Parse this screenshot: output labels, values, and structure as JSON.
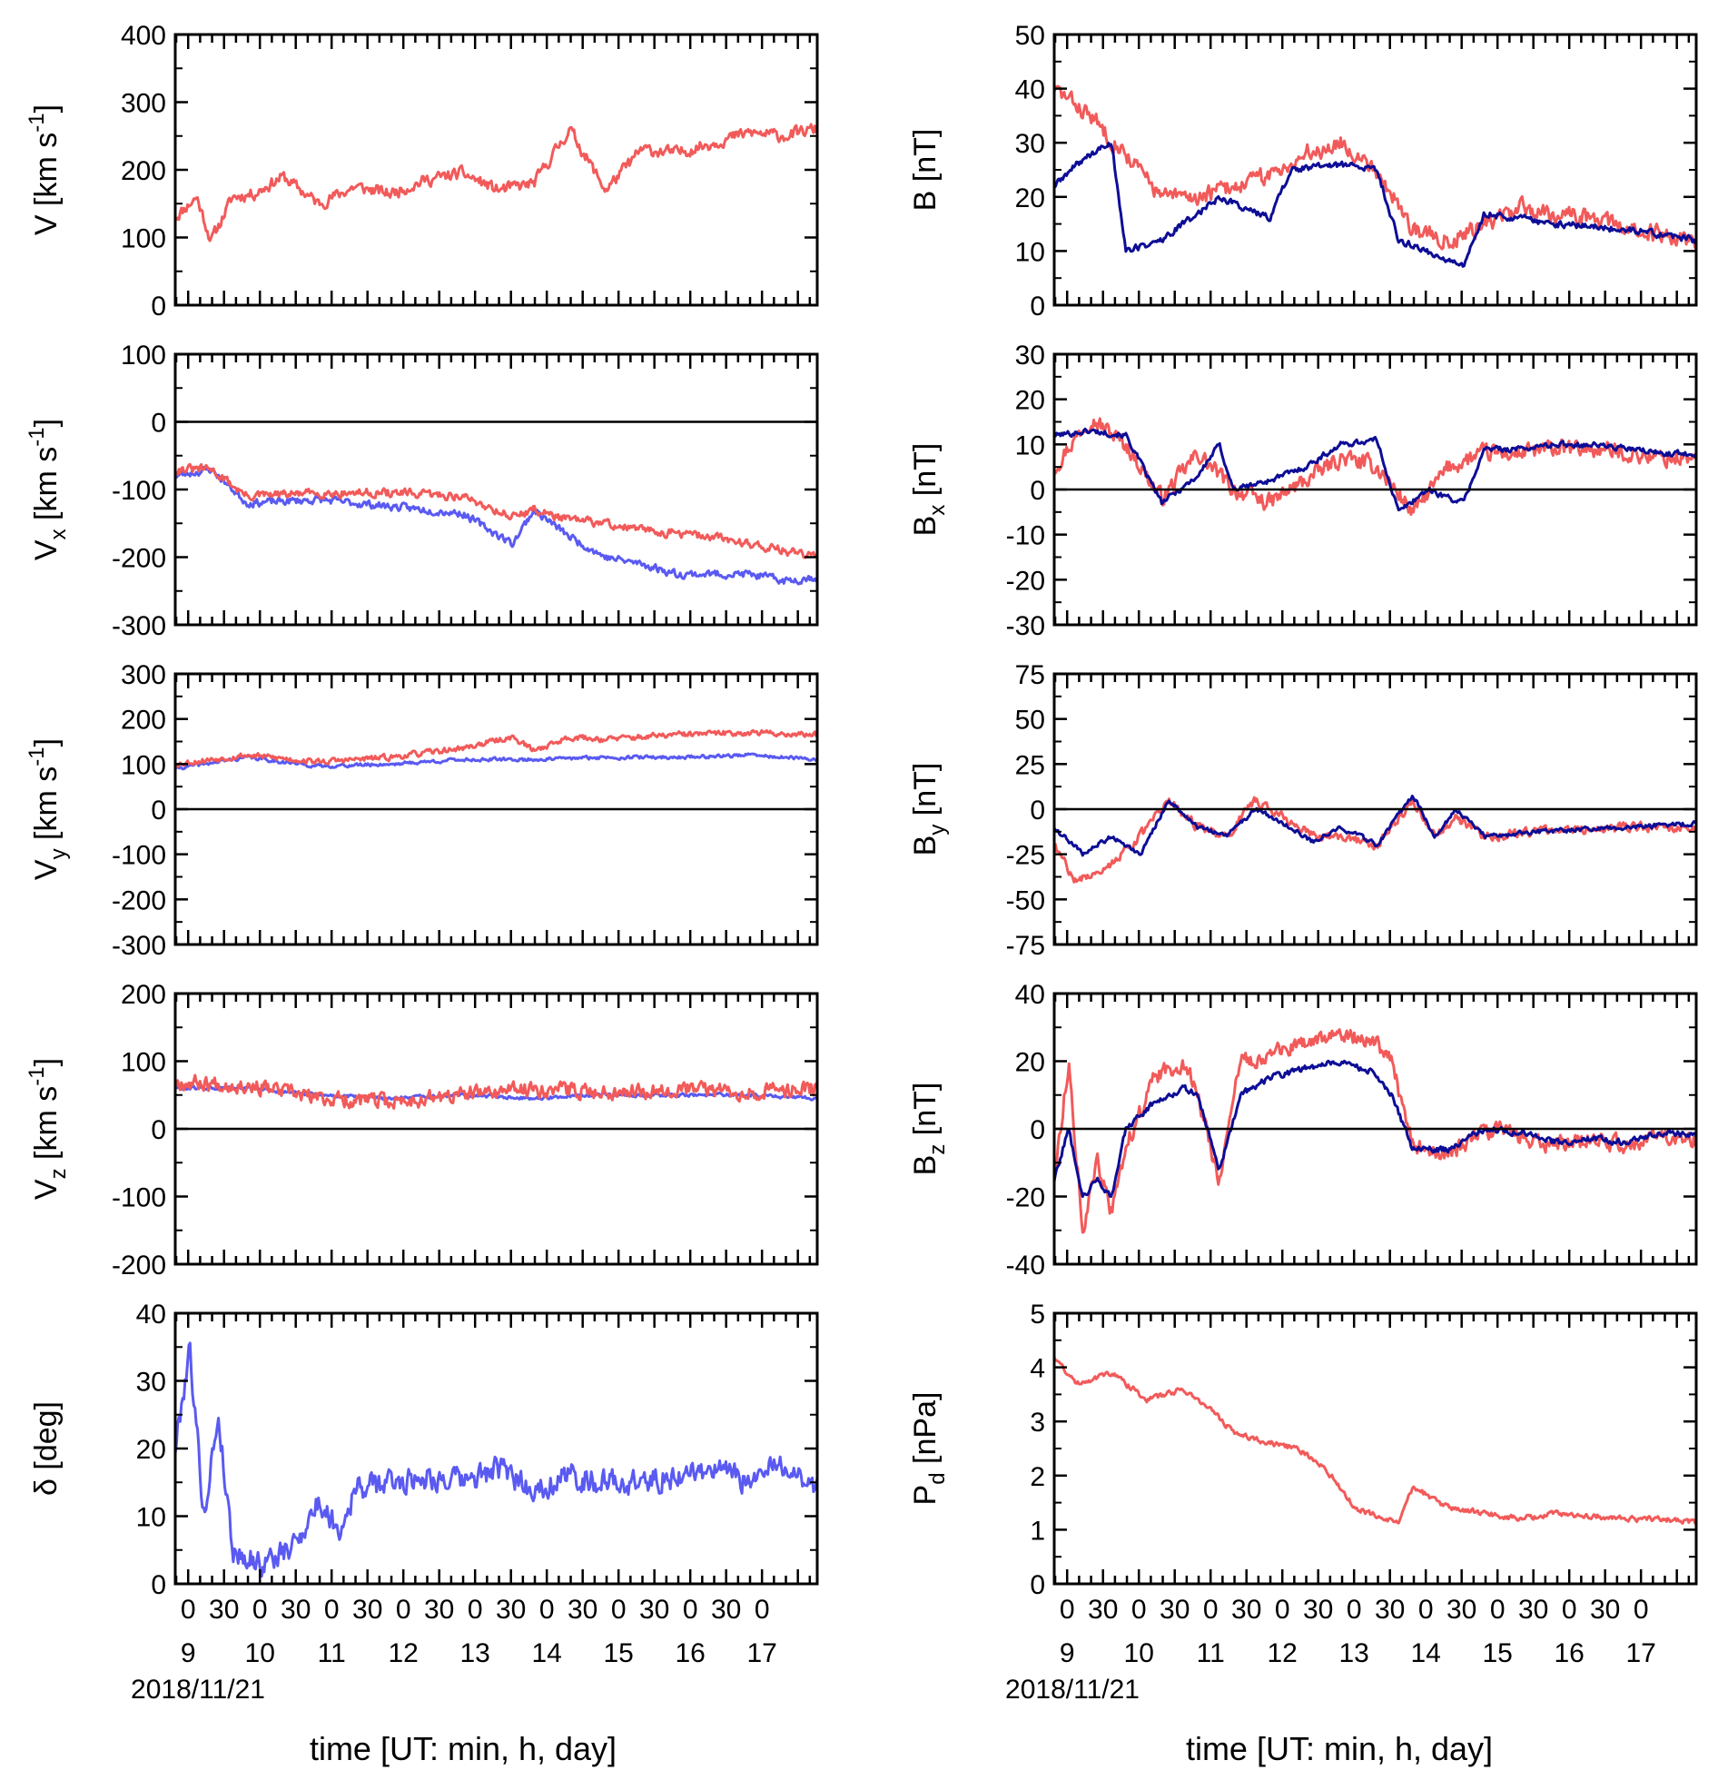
{
  "figure": {
    "x_axis_title": "time [UT: min, h, day]",
    "date": "2018/11/21",
    "colors": {
      "pred": "#f25a5a",
      "obs_light": "#5a5af2",
      "obs_dark": "#0d0d96",
      "axis": "#000000"
    }
  },
  "chart_data": [
    {
      "id": "V",
      "column": "left",
      "type": "line",
      "ylabel": "V [km s-1]",
      "ylabel_main": "V [km s",
      "ylabel_sup": "-1",
      "ylabel_tail": "]",
      "ylim": [
        0,
        400
      ],
      "yticks": [
        0,
        100,
        200,
        300,
        400
      ],
      "zero_line": false,
      "series": [
        {
          "name": "red",
          "color": "#f25a5a",
          "x": [
            0,
            0.3,
            0.5,
            0.8,
            1.1,
            1.5,
            2,
            2.5,
            3,
            3.5,
            4,
            4.5,
            5,
            5.5,
            6,
            6.5,
            7,
            7.5,
            8,
            8.5,
            8.9
          ],
          "y": [
            130,
            160,
            95,
            160,
            165,
            190,
            150,
            175,
            165,
            185,
            195,
            170,
            180,
            260,
            170,
            230,
            225,
            240,
            255,
            250,
            260
          ],
          "noise": 14,
          "seed": 11
        }
      ]
    },
    {
      "id": "Vx",
      "column": "left",
      "type": "line",
      "ylabel": "Vx [km s-1]",
      "ylabel_main": "V",
      "ylabel_sub": "x",
      "ylabel_mid": " [km s",
      "ylabel_sup": "-1",
      "ylabel_tail": "]",
      "ylim": [
        -300,
        100
      ],
      "yticks": [
        -300,
        -200,
        -100,
        0,
        100
      ],
      "zero_line": true,
      "series": [
        {
          "name": "blue",
          "color": "#5a5af2",
          "x": [
            0,
            0.5,
            1,
            2,
            3,
            4,
            4.7,
            5,
            5.5,
            6,
            6.5,
            7,
            7.5,
            8,
            8.5,
            8.9
          ],
          "y": [
            -80,
            -70,
            -120,
            -115,
            -125,
            -135,
            -180,
            -130,
            -170,
            -200,
            -210,
            -225,
            -225,
            -225,
            -235,
            -230
          ],
          "noise": 9,
          "seed": 23
        },
        {
          "name": "red",
          "color": "#f25a5a",
          "x": [
            0,
            0.5,
            1,
            2,
            3,
            4,
            4.7,
            5,
            5.5,
            6,
            6.5,
            7,
            7.5,
            8,
            8.5,
            8.9
          ],
          "y": [
            -70,
            -70,
            -110,
            -105,
            -105,
            -110,
            -140,
            -130,
            -145,
            -150,
            -160,
            -165,
            -170,
            -180,
            -190,
            -200
          ],
          "noise": 10,
          "seed": 31
        }
      ]
    },
    {
      "id": "Vy",
      "column": "left",
      "type": "line",
      "ylabel": "Vy [km s-1]",
      "ylabel_main": "V",
      "ylabel_sub": "y",
      "ylabel_mid": " [km s",
      "ylabel_sup": "-1",
      "ylabel_tail": "]",
      "ylim": [
        -300,
        300
      ],
      "yticks": [
        -300,
        -200,
        -100,
        0,
        100,
        200,
        300
      ],
      "zero_line": true,
      "series": [
        {
          "name": "blue",
          "color": "#5a5af2",
          "x": [
            0,
            1,
            2,
            3,
            4,
            5,
            6,
            7,
            8,
            8.9
          ],
          "y": [
            90,
            115,
            95,
            100,
            110,
            110,
            115,
            115,
            120,
            110
          ],
          "noise": 6,
          "seed": 41
        },
        {
          "name": "red",
          "color": "#f25a5a",
          "x": [
            0,
            1,
            2,
            3,
            4,
            4.7,
            5,
            5.5,
            6,
            7,
            8,
            8.9
          ],
          "y": [
            100,
            120,
            105,
            115,
            135,
            160,
            130,
            160,
            155,
            165,
            170,
            165
          ],
          "noise": 10,
          "seed": 53
        }
      ]
    },
    {
      "id": "Vz",
      "column": "left",
      "type": "line",
      "ylabel": "Vz [km s-1]",
      "ylabel_main": "V",
      "ylabel_sub": "z",
      "ylabel_mid": " [km s",
      "ylabel_sup": "-1",
      "ylabel_tail": "]",
      "ylim": [
        -200,
        200
      ],
      "yticks": [
        -200,
        -100,
        0,
        100,
        200
      ],
      "zero_line": true,
      "series": [
        {
          "name": "blue",
          "color": "#5a5af2",
          "x": [
            0,
            1,
            2,
            3,
            4,
            5,
            6,
            7,
            8,
            8.9
          ],
          "y": [
            60,
            60,
            50,
            45,
            50,
            45,
            50,
            50,
            50,
            45
          ],
          "noise": 4,
          "seed": 61
        },
        {
          "name": "red",
          "color": "#f25a5a",
          "x": [
            0,
            1,
            2,
            3,
            4,
            5,
            6,
            7,
            8,
            8.9
          ],
          "y": [
            70,
            65,
            45,
            40,
            50,
            60,
            55,
            60,
            55,
            60
          ],
          "noise": 18,
          "seed": 67
        }
      ]
    },
    {
      "id": "delta",
      "column": "left",
      "type": "line",
      "ylabel": "δ [deg]",
      "ylabel_main": "δ [deg]",
      "ylim": [
        0,
        40
      ],
      "yticks": [
        0,
        10,
        20,
        30,
        40
      ],
      "zero_line": false,
      "series": [
        {
          "name": "blue",
          "color": "#5a5af2",
          "x": [
            0,
            0.2,
            0.4,
            0.6,
            0.8,
            1.2,
            1.6,
            2,
            2.3,
            2.5,
            3,
            3.5,
            4,
            4.5,
            5,
            5.5,
            6,
            6.5,
            7,
            7.5,
            8,
            8.5,
            8.9
          ],
          "y": [
            20,
            35,
            10,
            25,
            5,
            3,
            5,
            12,
            8,
            14,
            15,
            16,
            15,
            17,
            14,
            16,
            15,
            15,
            16,
            17,
            15,
            18,
            14
          ],
          "noise": 3,
          "seed": 79
        }
      ]
    },
    {
      "id": "B",
      "column": "right",
      "type": "line",
      "ylabel": "B [nT]",
      "ylabel_main": "B [nT]",
      "ylim": [
        0,
        50
      ],
      "yticks": [
        0,
        10,
        20,
        30,
        40,
        50
      ],
      "zero_line": false,
      "series": [
        {
          "name": "red",
          "color": "#f25a5a",
          "x": [
            0,
            0.5,
            1,
            1.5,
            2,
            2.5,
            3,
            3.5,
            4,
            4.5,
            5,
            5.5,
            6,
            6.5,
            7,
            7.5,
            8,
            8.5,
            8.9
          ],
          "y": [
            40,
            35,
            28,
            20,
            20,
            22,
            24,
            28,
            30,
            25,
            14,
            12,
            15,
            18,
            17,
            16,
            14,
            13,
            12
          ],
          "noise": 2.5,
          "seed": 83
        },
        {
          "name": "dark",
          "color": "#0d0d96",
          "x": [
            0,
            0.4,
            0.8,
            1,
            1.5,
            2.3,
            3,
            3.3,
            4,
            4.5,
            4.8,
            5.2,
            5.7,
            6,
            7,
            8,
            8.9
          ],
          "y": [
            22,
            27,
            30,
            10,
            12,
            20,
            16,
            25,
            26,
            25,
            12,
            10,
            7,
            17,
            15,
            14,
            12
          ],
          "noise": 1,
          "seed": 89
        }
      ]
    },
    {
      "id": "Bx",
      "column": "right",
      "type": "line",
      "ylabel": "Bx [nT]",
      "ylabel_main": "B",
      "ylabel_sub": "x",
      "ylabel_mid": " [nT]",
      "ylim": [
        -30,
        30
      ],
      "yticks": [
        -30,
        -20,
        -10,
        0,
        10,
        20,
        30
      ],
      "zero_line": true,
      "series": [
        {
          "name": "red",
          "color": "#f25a5a",
          "x": [
            0,
            0.5,
            1,
            1.5,
            2,
            2.5,
            3,
            3.5,
            4,
            4.5,
            5,
            5.5,
            6,
            6.5,
            7,
            7.5,
            8,
            8.5,
            8.9
          ],
          "y": [
            5,
            16,
            10,
            -2,
            8,
            0,
            -3,
            2,
            7,
            5,
            -5,
            5,
            8,
            8,
            9,
            9,
            8,
            7,
            7
          ],
          "noise": 3,
          "seed": 97
        },
        {
          "name": "dark",
          "color": "#0d0d96",
          "x": [
            0,
            0.5,
            1,
            1.5,
            2,
            2.3,
            2.5,
            3,
            3.5,
            4,
            4.5,
            4.8,
            5.2,
            5.7,
            6,
            6.5,
            7,
            7.5,
            8,
            8.5,
            8.9
          ],
          "y": [
            12,
            13,
            12,
            -3,
            3,
            10,
            0,
            2,
            5,
            10,
            11,
            -5,
            0,
            -3,
            9,
            9,
            10,
            10,
            9,
            8,
            8
          ],
          "noise": 1,
          "seed": 101
        }
      ]
    },
    {
      "id": "By",
      "column": "right",
      "type": "line",
      "ylabel": "By [nT]",
      "ylabel_main": "B",
      "ylabel_sub": "y",
      "ylabel_mid": " [nT]",
      "ylim": [
        -75,
        75
      ],
      "yticks": [
        -75,
        -50,
        -25,
        0,
        25,
        50,
        75
      ],
      "zero_line": true,
      "series": [
        {
          "name": "red",
          "color": "#f25a5a",
          "x": [
            0,
            0.3,
            0.8,
            1.2,
            1.6,
            2,
            2.4,
            2.8,
            3.2,
            3.6,
            4,
            4.5,
            5,
            5.3,
            5.6,
            6,
            7,
            8,
            8.9
          ],
          "y": [
            -20,
            -40,
            -30,
            -15,
            5,
            -10,
            -15,
            5,
            -5,
            -15,
            -15,
            -20,
            5,
            -15,
            -5,
            -15,
            -12,
            -10,
            -10
          ],
          "noise": 4,
          "seed": 107
        },
        {
          "name": "dark",
          "color": "#0d0d96",
          "x": [
            0,
            0.4,
            0.8,
            1.2,
            1.6,
            2,
            2.4,
            2.8,
            3.2,
            3.6,
            4,
            4.5,
            5,
            5.3,
            5.6,
            6,
            7,
            8,
            8.9
          ],
          "y": [
            -10,
            -25,
            -15,
            -25,
            5,
            -10,
            -15,
            0,
            -8,
            -18,
            -10,
            -20,
            8,
            -15,
            0,
            -15,
            -12,
            -10,
            -8
          ],
          "noise": 2,
          "seed": 109
        }
      ]
    },
    {
      "id": "Bz",
      "column": "right",
      "type": "line",
      "ylabel": "Bz [nT]",
      "ylabel_main": "B",
      "ylabel_sub": "z",
      "ylabel_mid": " [nT]",
      "ylim": [
        -40,
        40
      ],
      "yticks": [
        -40,
        -20,
        0,
        20,
        40
      ],
      "zero_line": true,
      "series": [
        {
          "name": "red",
          "color": "#f25a5a",
          "x": [
            0,
            0.2,
            0.4,
            0.6,
            0.8,
            1,
            1.4,
            1.8,
            2,
            2.3,
            2.6,
            3,
            3.5,
            4,
            4.4,
            4.7,
            5,
            5.5,
            6,
            6.5,
            7,
            7.5,
            8,
            8.5,
            8.9
          ],
          "y": [
            -15,
            20,
            -30,
            -10,
            -25,
            -5,
            15,
            20,
            10,
            -15,
            20,
            22,
            25,
            28,
            27,
            20,
            -5,
            -8,
            0,
            -2,
            -5,
            -3,
            -5,
            -2,
            -3
          ],
          "noise": 4,
          "seed": 113
        },
        {
          "name": "dark",
          "color": "#0d0d96",
          "x": [
            0,
            0.2,
            0.4,
            0.6,
            0.8,
            1,
            1.4,
            1.8,
            2,
            2.3,
            2.6,
            3,
            3.5,
            4,
            4.4,
            4.7,
            5,
            5.5,
            6,
            6.5,
            7,
            7.5,
            8,
            8.5,
            8.9
          ],
          "y": [
            -15,
            0,
            -20,
            -15,
            -20,
            0,
            8,
            12,
            10,
            -12,
            10,
            15,
            18,
            20,
            17,
            10,
            -6,
            -6,
            0,
            -1,
            -4,
            -3,
            -4,
            -1,
            -2
          ],
          "noise": 1.5,
          "seed": 127
        }
      ]
    },
    {
      "id": "Pd",
      "column": "right",
      "type": "line",
      "ylabel": "Pd [nPa]",
      "ylabel_main": "P",
      "ylabel_sub": "d",
      "ylabel_mid": " [nPa]",
      "ylim": [
        0,
        5
      ],
      "yticks": [
        0,
        1,
        2,
        3,
        4,
        5
      ],
      "zero_line": false,
      "series": [
        {
          "name": "red",
          "color": "#f25a5a",
          "x": [
            0,
            0.3,
            0.8,
            1.3,
            1.8,
            2.2,
            2.5,
            3,
            3.4,
            3.8,
            4.2,
            4.6,
            4.8,
            5,
            5.5,
            6,
            6.5,
            7,
            7.5,
            8,
            8.5,
            8.9
          ],
          "y": [
            4.2,
            3.7,
            3.9,
            3.4,
            3.6,
            3.2,
            2.8,
            2.6,
            2.5,
            2.1,
            1.4,
            1.2,
            1.1,
            1.8,
            1.4,
            1.3,
            1.2,
            1.3,
            1.25,
            1.2,
            1.2,
            1.15
          ],
          "noise": 0.08,
          "seed": 131
        }
      ]
    }
  ],
  "x_axis": {
    "range": [
      0,
      8.95
    ],
    "minute_labels": [
      {
        "x": 0.18,
        "text": "0"
      },
      {
        "x": 0.68,
        "text": "30"
      },
      {
        "x": 1.18,
        "text": "0"
      },
      {
        "x": 1.68,
        "text": "30"
      },
      {
        "x": 2.18,
        "text": "0"
      },
      {
        "x": 2.68,
        "text": "30"
      },
      {
        "x": 3.18,
        "text": "0"
      },
      {
        "x": 3.68,
        "text": "30"
      },
      {
        "x": 4.18,
        "text": "0"
      },
      {
        "x": 4.68,
        "text": "30"
      },
      {
        "x": 5.18,
        "text": "0"
      },
      {
        "x": 5.68,
        "text": "30"
      },
      {
        "x": 6.18,
        "text": "0"
      },
      {
        "x": 6.68,
        "text": "30"
      },
      {
        "x": 7.18,
        "text": "0"
      },
      {
        "x": 7.68,
        "text": "30"
      },
      {
        "x": 8.18,
        "text": "0"
      }
    ],
    "hour_labels": [
      {
        "x": 0.18,
        "text": "9"
      },
      {
        "x": 1.18,
        "text": "10"
      },
      {
        "x": 2.18,
        "text": "11"
      },
      {
        "x": 3.18,
        "text": "12"
      },
      {
        "x": 4.18,
        "text": "13"
      },
      {
        "x": 5.18,
        "text": "14"
      },
      {
        "x": 6.18,
        "text": "15"
      },
      {
        "x": 7.18,
        "text": "16"
      },
      {
        "x": 8.18,
        "text": "17"
      }
    ]
  }
}
